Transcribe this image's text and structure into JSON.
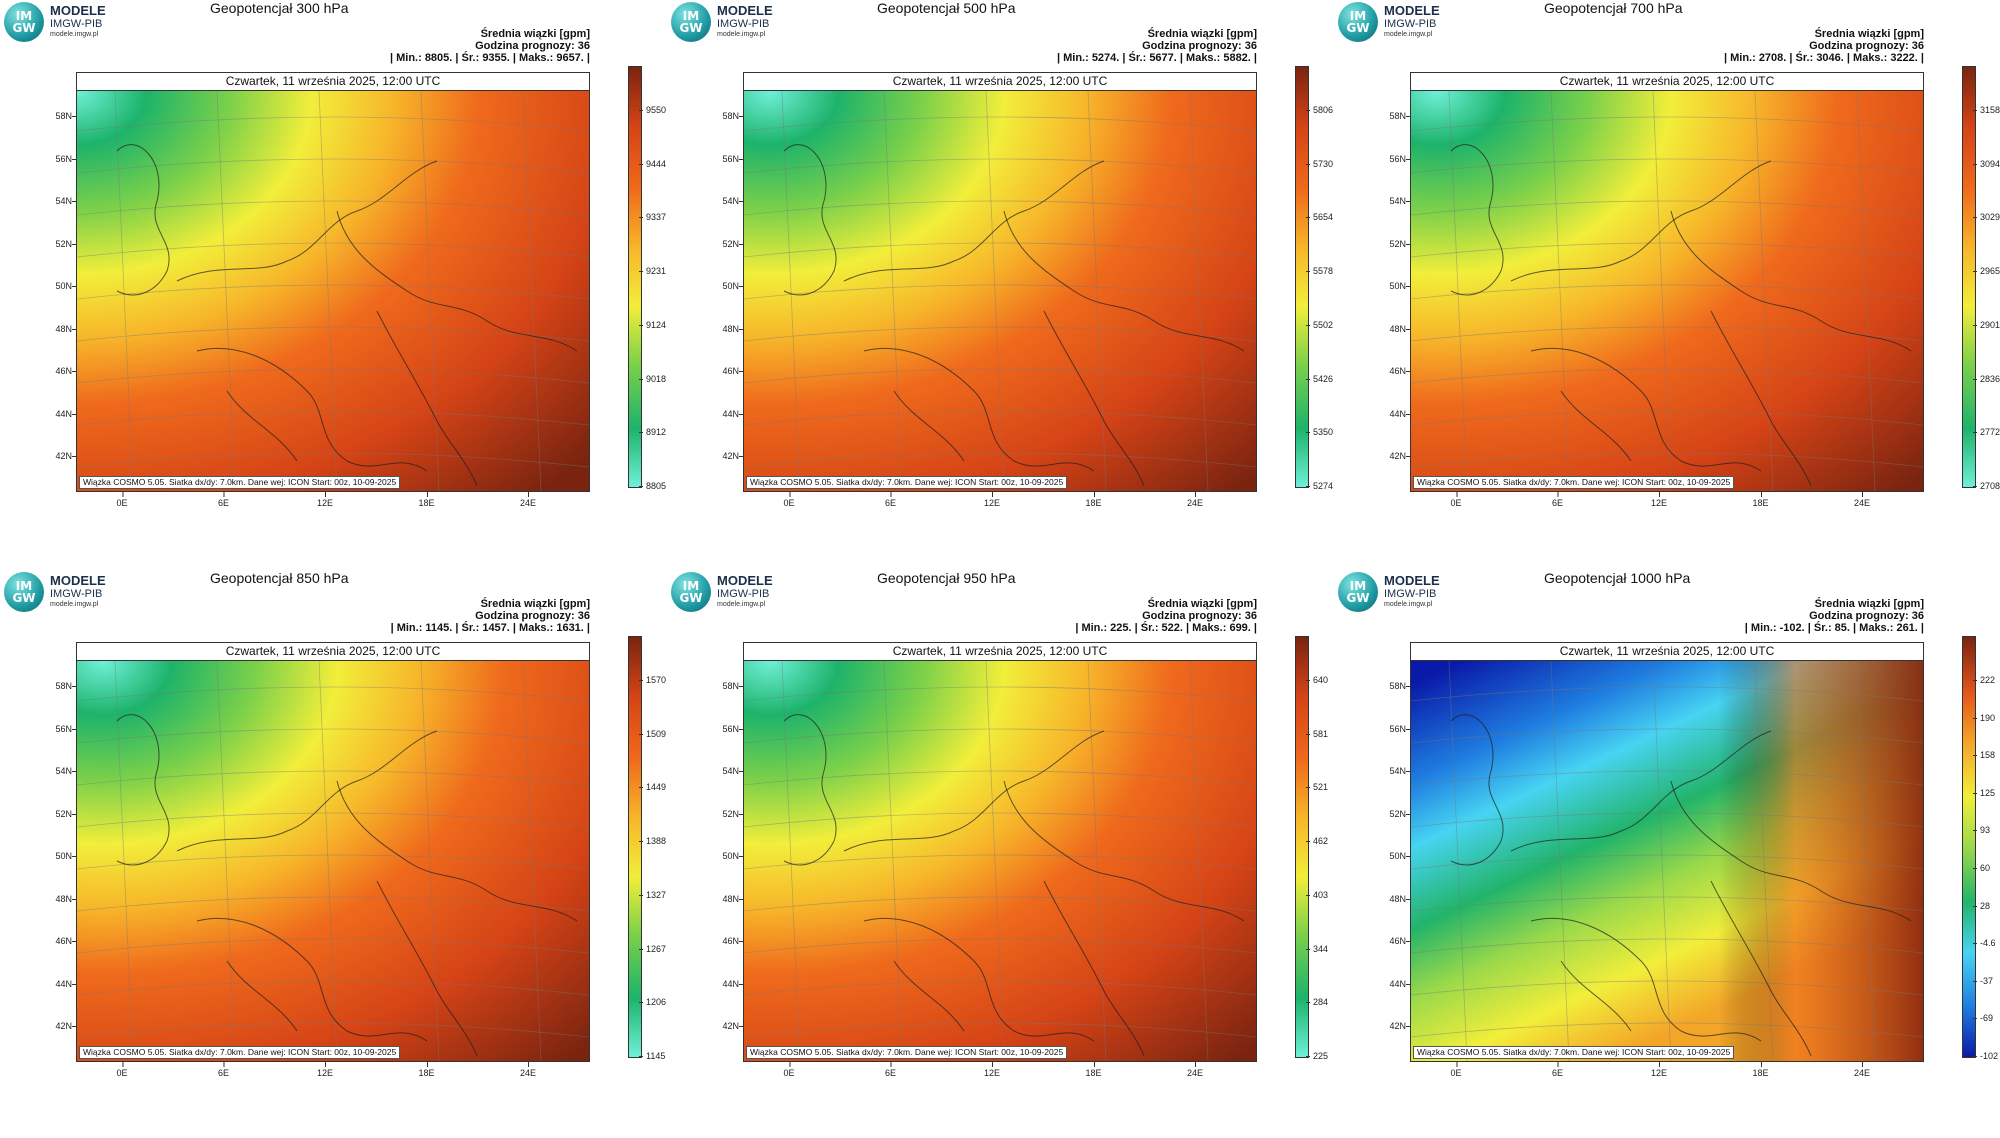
{
  "logo": {
    "circle_top": "IM",
    "circle_bottom": "GW",
    "title": "MODELE",
    "subtitle": "IMGW-PIB",
    "url": "modele.imgw.pl"
  },
  "common": {
    "date": "Czwartek, 11 września 2025, 12:00 UTC",
    "mean_label": "Średnia wiązki [gpm]",
    "forecast_label": "Godzina prognozy: 36",
    "credit": "Wiązka COSMO 5.05. Siatka dx/dy: 7.0km. Dane wej: ICON Start: 00z, 10-09-2025",
    "lat_ticks": [
      "58N",
      "56N",
      "54N",
      "52N",
      "50N",
      "48N",
      "46N",
      "44N",
      "42N"
    ],
    "lon_ticks": [
      "0E",
      "6E",
      "12E",
      "18E",
      "24E"
    ]
  },
  "panels": [
    {
      "title": "Geopotencjał 300 hPa",
      "stats": "| Min.:   8805. | Śr.:   9355. | Maks.:   9657. |",
      "scale": [
        "9550",
        "9444",
        "9337",
        "9231",
        "9124",
        "9018",
        "8912",
        "8805"
      ],
      "palette": "warm"
    },
    {
      "title": "Geopotencjał 500 hPa",
      "stats": "| Min.:   5274. | Śr.:   5677. | Maks.:   5882. |",
      "scale": [
        "5806",
        "5730",
        "5654",
        "5578",
        "5502",
        "5426",
        "5350",
        "5274"
      ],
      "palette": "warm"
    },
    {
      "title": "Geopotencjał 700 hPa",
      "stats": "| Min.:   2708. | Śr.:   3046. | Maks.:   3222. |",
      "scale": [
        "3158",
        "3094",
        "3029",
        "2965",
        "2901",
        "2836",
        "2772",
        "2708"
      ],
      "palette": "warm"
    },
    {
      "title": "Geopotencjał 850 hPa",
      "stats": "| Min.:   1145. | Śr.:   1457. | Maks.:   1631. |",
      "scale": [
        "1570",
        "1509",
        "1449",
        "1388",
        "1327",
        "1267",
        "1206",
        "1145"
      ],
      "palette": "warm"
    },
    {
      "title": "Geopotencjał 950 hPa",
      "stats": "| Min.:   225. | Śr.:   522. | Maks.:   699. |",
      "scale": [
        "640",
        "581",
        "521",
        "462",
        "403",
        "344",
        "284",
        "225"
      ],
      "palette": "warm"
    },
    {
      "title": "Geopotencjał 1000 hPa",
      "stats": "| Min.:   -102. | Śr.:   85. | Maks.:   261. |",
      "scale": [
        "222",
        "190",
        "158",
        "125",
        "93",
        "60",
        "28",
        "-4.6",
        "-37",
        "-69",
        "-102"
      ],
      "palette": "cold"
    }
  ],
  "colors": {
    "warm": [
      "#6ff0d8",
      "#1db36b",
      "#7ad04a",
      "#f2ee3a",
      "#f7b52a",
      "#ef6a1c",
      "#d44316",
      "#7a2410"
    ],
    "cold": [
      "#0a1aa8",
      "#1f7de0",
      "#47d4f2",
      "#22b46a",
      "#9bd94a",
      "#f2ee3a",
      "#f3a528",
      "#e2541a",
      "#7a2410"
    ]
  }
}
